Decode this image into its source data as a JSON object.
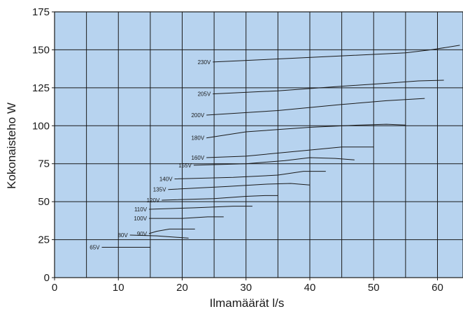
{
  "colors": {
    "plot_background": "#b7d3ef",
    "grid": "#1a1a1a",
    "line": "#1a1a1a"
  },
  "chart_data": {
    "type": "line",
    "title": "",
    "xlabel": "Ilmamäärät l/s",
    "ylabel": "Kokonaisteho W",
    "xlim": [
      0,
      64
    ],
    "ylim": [
      0,
      175
    ],
    "xticks": [
      0,
      10,
      20,
      30,
      40,
      50,
      60
    ],
    "yticks": [
      0,
      25,
      50,
      75,
      100,
      125,
      150,
      175
    ],
    "xgrid": [
      5,
      10,
      15,
      20,
      25,
      30,
      35,
      40,
      45,
      50,
      55,
      60
    ],
    "grid": true,
    "legend": "none",
    "series": [
      {
        "name": "230V",
        "x": [
          24.8,
          35,
          45,
          55,
          59,
          63.5
        ],
        "y": [
          142,
          144,
          146,
          148,
          150,
          153
        ]
      },
      {
        "name": "205V",
        "x": [
          24.8,
          35,
          45,
          52,
          57,
          61
        ],
        "y": [
          121,
          123,
          126,
          128,
          129.5,
          130
        ]
      },
      {
        "name": "200V",
        "x": [
          23.8,
          35,
          45,
          52,
          58
        ],
        "y": [
          107,
          110,
          114,
          116.5,
          118
        ]
      },
      {
        "name": "180V",
        "x": [
          23.8,
          30,
          40,
          48,
          52,
          55
        ],
        "y": [
          92,
          96,
          99,
          100.5,
          101,
          100.5
        ]
      },
      {
        "name": "160V",
        "x": [
          23.8,
          30,
          40,
          45,
          50
        ],
        "y": [
          79,
          80,
          84,
          86,
          86
        ]
      },
      {
        "name": "155V",
        "x": [
          21.8,
          30,
          36,
          40,
          44,
          47
        ],
        "y": [
          74,
          75,
          77,
          79,
          78.5,
          77.5
        ]
      },
      {
        "name": "140V",
        "x": [
          18.8,
          28,
          35,
          39,
          42.5
        ],
        "y": [
          65,
          66,
          67.5,
          70,
          70
        ]
      },
      {
        "name": "135V",
        "x": [
          17.8,
          27,
          33,
          37,
          40
        ],
        "y": [
          58,
          60,
          61.5,
          62,
          61
        ]
      },
      {
        "name": "120V",
        "x": [
          16.8,
          25,
          30,
          33,
          35
        ],
        "y": [
          51,
          52,
          53.5,
          54,
          54
        ]
      },
      {
        "name": "110V",
        "x": [
          14.8,
          22,
          28,
          31
        ],
        "y": [
          45,
          46,
          47,
          47
        ]
      },
      {
        "name": "100V",
        "x": [
          14.8,
          20,
          24,
          26.5
        ],
        "y": [
          39,
          39,
          40,
          40
        ]
      },
      {
        "name": "90V",
        "x": [
          14.8,
          16,
          18,
          20,
          22
        ],
        "y": [
          29,
          30.5,
          32,
          32,
          32
        ]
      },
      {
        "name": "80V",
        "x": [
          11.8,
          16,
          21
        ],
        "y": [
          28,
          27.5,
          26
        ]
      },
      {
        "name": "65V",
        "x": [
          7.4,
          12,
          15
        ],
        "y": [
          20,
          20,
          20
        ]
      }
    ]
  }
}
